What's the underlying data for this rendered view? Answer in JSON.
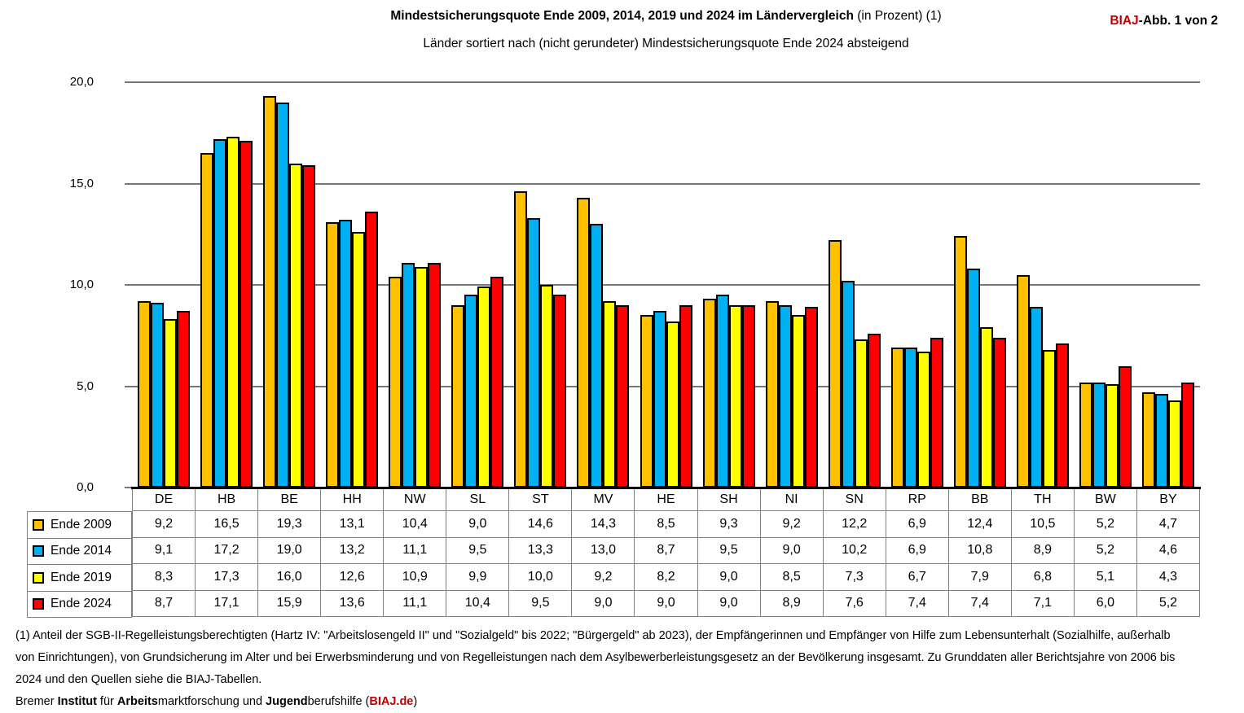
{
  "chart_data": {
    "type": "bar",
    "title_bold": "Mindestsicherungsquote Ende 2009, 2014, 2019 und 2024  im Ländervergleich",
    "title_rest": " (in Prozent) (1)",
    "subtitle": "Länder sortiert nach (nicht gerundeter) Mindestsicherungsquote Ende 2024 absteigend",
    "xlabel": "",
    "ylabel": "",
    "ylim": [
      0,
      20
    ],
    "ytick_step": 5,
    "ytick_labels": [
      "0,0",
      "5,0",
      "10,0",
      "15,0",
      "20,0"
    ],
    "grid": true,
    "legend_position": "table-left",
    "decimal_separator": ",",
    "categories": [
      "DE",
      "HB",
      "BE",
      "HH",
      "NW",
      "SL",
      "ST",
      "MV",
      "HE",
      "SH",
      "NI",
      "SN",
      "RP",
      "BB",
      "TH",
      "BW",
      "BY"
    ],
    "series": [
      {
        "name": "Ende 2009",
        "color": "#FFC000",
        "values": [
          9.2,
          16.5,
          19.3,
          13.1,
          10.4,
          9.0,
          14.6,
          14.3,
          8.5,
          9.3,
          9.2,
          12.2,
          6.9,
          12.4,
          10.5,
          5.2,
          4.7
        ]
      },
      {
        "name": "Ende 2014",
        "color": "#00B0F0",
        "values": [
          9.1,
          17.2,
          19.0,
          13.2,
          11.1,
          9.5,
          13.3,
          13.0,
          8.7,
          9.5,
          9.0,
          10.2,
          6.9,
          10.8,
          8.9,
          5.2,
          4.6
        ]
      },
      {
        "name": "Ende 2019",
        "color": "#FFFF00",
        "values": [
          8.3,
          17.3,
          16.0,
          12.6,
          10.9,
          9.9,
          10.0,
          9.2,
          8.2,
          9.0,
          8.5,
          7.3,
          6.7,
          7.9,
          6.8,
          5.1,
          4.3
        ]
      },
      {
        "name": "Ende 2024",
        "color": "#FF0000",
        "values": [
          8.7,
          17.1,
          15.9,
          13.6,
          11.1,
          10.4,
          9.5,
          9.0,
          9.0,
          9.0,
          8.9,
          7.6,
          7.4,
          7.4,
          7.1,
          6.0,
          5.2
        ]
      }
    ]
  },
  "badge": {
    "brand": "BIAJ",
    "brand_color": "#C00000",
    "rest": "-Abb. 1 von 2"
  },
  "footnotes": {
    "line1": "(1) Anteil der SGB-II-Regelleistungsberechtigten (Hartz IV: \"Arbeitslosengeld II\" und \"Sozialgeld\" bis 2022; \"Bürgergeld\" ab 2023), der Empfängerinnen und Empfänger von Hilfe zum Lebensunterhalt (Sozialhilfe, außerhalb",
    "line2": "von Einrichtungen), von Grundsicherung im Alter und bei Erwerbsminderung und von Regelleistungen nach dem Asylbewerberleistungsgesetz an der Bevölkerung insgesamt.  Zu Grunddaten aller Berichtsjahre von 2006 bis",
    "line3": "2024  und den Quellen siehe die BIAJ-Tabellen.",
    "credit_segments": [
      {
        "text": "Bremer ",
        "bold": false
      },
      {
        "text": "Institut",
        "bold": true
      },
      {
        "text": " für ",
        "bold": false
      },
      {
        "text": "Arbeits",
        "bold": true
      },
      {
        "text": "marktforschung und ",
        "bold": false
      },
      {
        "text": "Jugend",
        "bold": true
      },
      {
        "text": "berufshilfe (",
        "bold": false
      },
      {
        "text": "BIAJ.de",
        "bold": true,
        "color": "#C00000"
      },
      {
        "text": ")",
        "bold": false
      }
    ]
  }
}
